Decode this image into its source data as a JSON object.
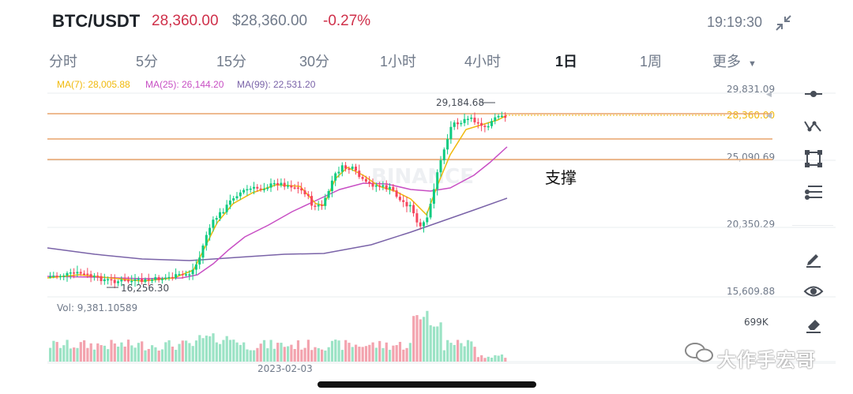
{
  "header": {
    "pair": "BTC/USDT",
    "price": "28,360.00",
    "usd_price": "$28,360.00",
    "change": "-0.27%",
    "time": "19:19:30"
  },
  "tabs": [
    {
      "label": "分时"
    },
    {
      "label": "5分"
    },
    {
      "label": "15分"
    },
    {
      "label": "30分"
    },
    {
      "label": "1小时"
    },
    {
      "label": "4小时"
    },
    {
      "label": "1日"
    },
    {
      "label": "1周"
    },
    {
      "label": "更多"
    }
  ],
  "active_tab": "1日",
  "indicators": {
    "ma7": "MA(7): 28,005.88",
    "ma25": "MA(25): 26,144.20",
    "ma99": "MA(99): 22,531.20"
  },
  "price_axis": {
    "high": "29,831.09",
    "current": "28,360.00",
    "mid_upper": "25,090.69",
    "mid_lower": "20,350.29",
    "low": "15,609.88"
  },
  "annotations": {
    "max_price": "29,184.68",
    "min_price": "16,256.30",
    "support": "支撑"
  },
  "volume": {
    "label": "Vol: 9,381.10589",
    "axis_max": "699K"
  },
  "x_axis": {
    "date": "2023-02-03"
  },
  "watermark": {
    "brand": "BINANCE",
    "account": "大作手宏哥"
  },
  "colors": {
    "up": "#0ecb81",
    "down": "#f6465d",
    "ma7": "#f0b90b",
    "ma25": "#c84fc4",
    "ma99": "#7a63a8",
    "line": "#e8a36b"
  },
  "tools": [
    {
      "icon": "horizontal-line-icon"
    },
    {
      "icon": "trend-line-icon"
    },
    {
      "icon": "rectangle-icon"
    },
    {
      "icon": "fib-icon"
    },
    {
      "icon": "pencil-icon"
    },
    {
      "icon": "eye-icon"
    },
    {
      "icon": "eraser-icon"
    }
  ]
}
